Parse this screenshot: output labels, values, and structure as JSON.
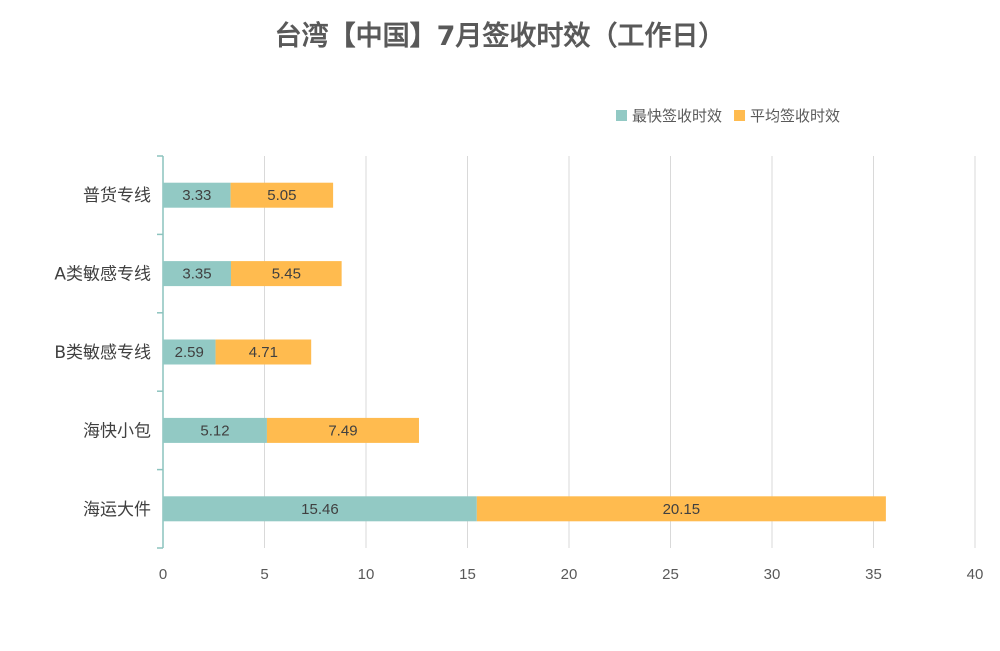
{
  "chart_data": {
    "type": "bar",
    "orientation": "horizontal",
    "stacked": true,
    "title": "台湾【中国】7月签收时效（工作日）",
    "categories": [
      "普货专线",
      "A类敏感专线",
      "B类敏感专线",
      "海快小包",
      "海运大件"
    ],
    "series": [
      {
        "name": "最快签收时效",
        "color": "#92C9C4",
        "values": [
          3.33,
          3.35,
          2.59,
          5.12,
          15.46
        ],
        "labels": [
          "3.33",
          "3.35",
          "2.59",
          "5.12",
          "15.46"
        ]
      },
      {
        "name": "平均签收时效",
        "color": "#FFBB4F",
        "values": [
          5.05,
          5.45,
          4.71,
          7.49,
          20.15
        ],
        "labels": [
          "5.05",
          "5.45",
          "4.71",
          "7.49",
          "20.15"
        ]
      }
    ],
    "xlim": [
      0,
      40
    ],
    "xticks": [
      "0",
      "5",
      "10",
      "15",
      "20",
      "25",
      "30",
      "35",
      "40"
    ],
    "grid": true,
    "legend_position": "top-right"
  }
}
